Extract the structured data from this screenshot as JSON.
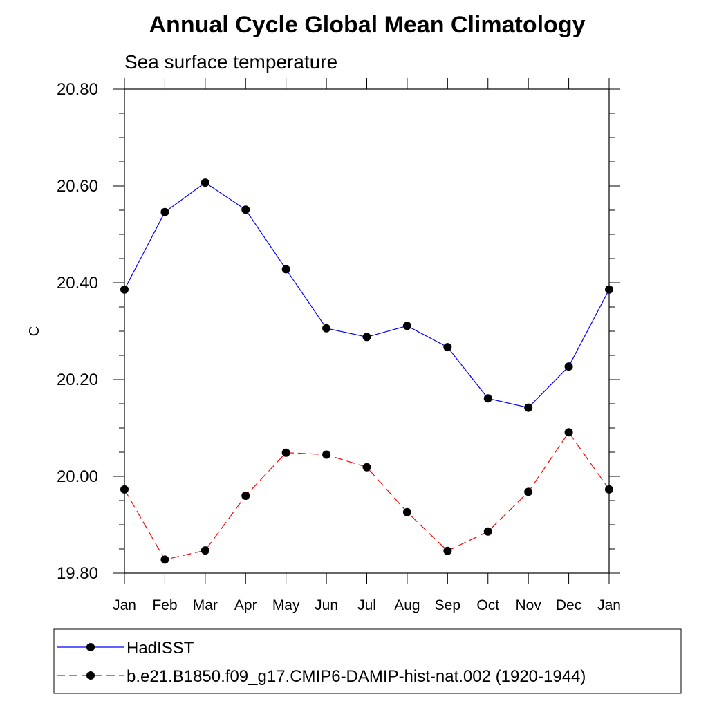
{
  "chart_data": {
    "type": "line",
    "title": "Annual Cycle Global Mean Climatology",
    "subtitle": "Sea surface temperature",
    "xlabel": "",
    "ylabel": "C",
    "categories": [
      "Jan",
      "Feb",
      "Mar",
      "Apr",
      "May",
      "Jun",
      "Jul",
      "Aug",
      "Sep",
      "Oct",
      "Nov",
      "Dec",
      "Jan"
    ],
    "ylim": [
      19.8,
      20.8
    ],
    "yticks": [
      "20.80",
      "20.60",
      "20.40",
      "20.20",
      "20.00",
      "19.80"
    ],
    "grid": false,
    "legend_position": "bottom",
    "series": [
      {
        "name": "HadISST",
        "color": "#0000ff",
        "line_style": "solid",
        "marker": "filled-circle",
        "values": [
          20.386,
          20.546,
          20.607,
          20.551,
          20.428,
          20.306,
          20.288,
          20.311,
          20.267,
          20.161,
          20.142,
          20.227,
          20.386
        ]
      },
      {
        "name": "b.e21.B1850.f09_g17.CMIP6-DAMIP-hist-nat.002 (1920-1944)",
        "color": "#ff0000",
        "line_style": "dashed",
        "marker": "filled-circle",
        "values": [
          19.973,
          19.828,
          19.847,
          19.96,
          20.049,
          20.045,
          20.019,
          19.926,
          19.846,
          19.886,
          19.968,
          20.091,
          19.973
        ]
      }
    ]
  }
}
